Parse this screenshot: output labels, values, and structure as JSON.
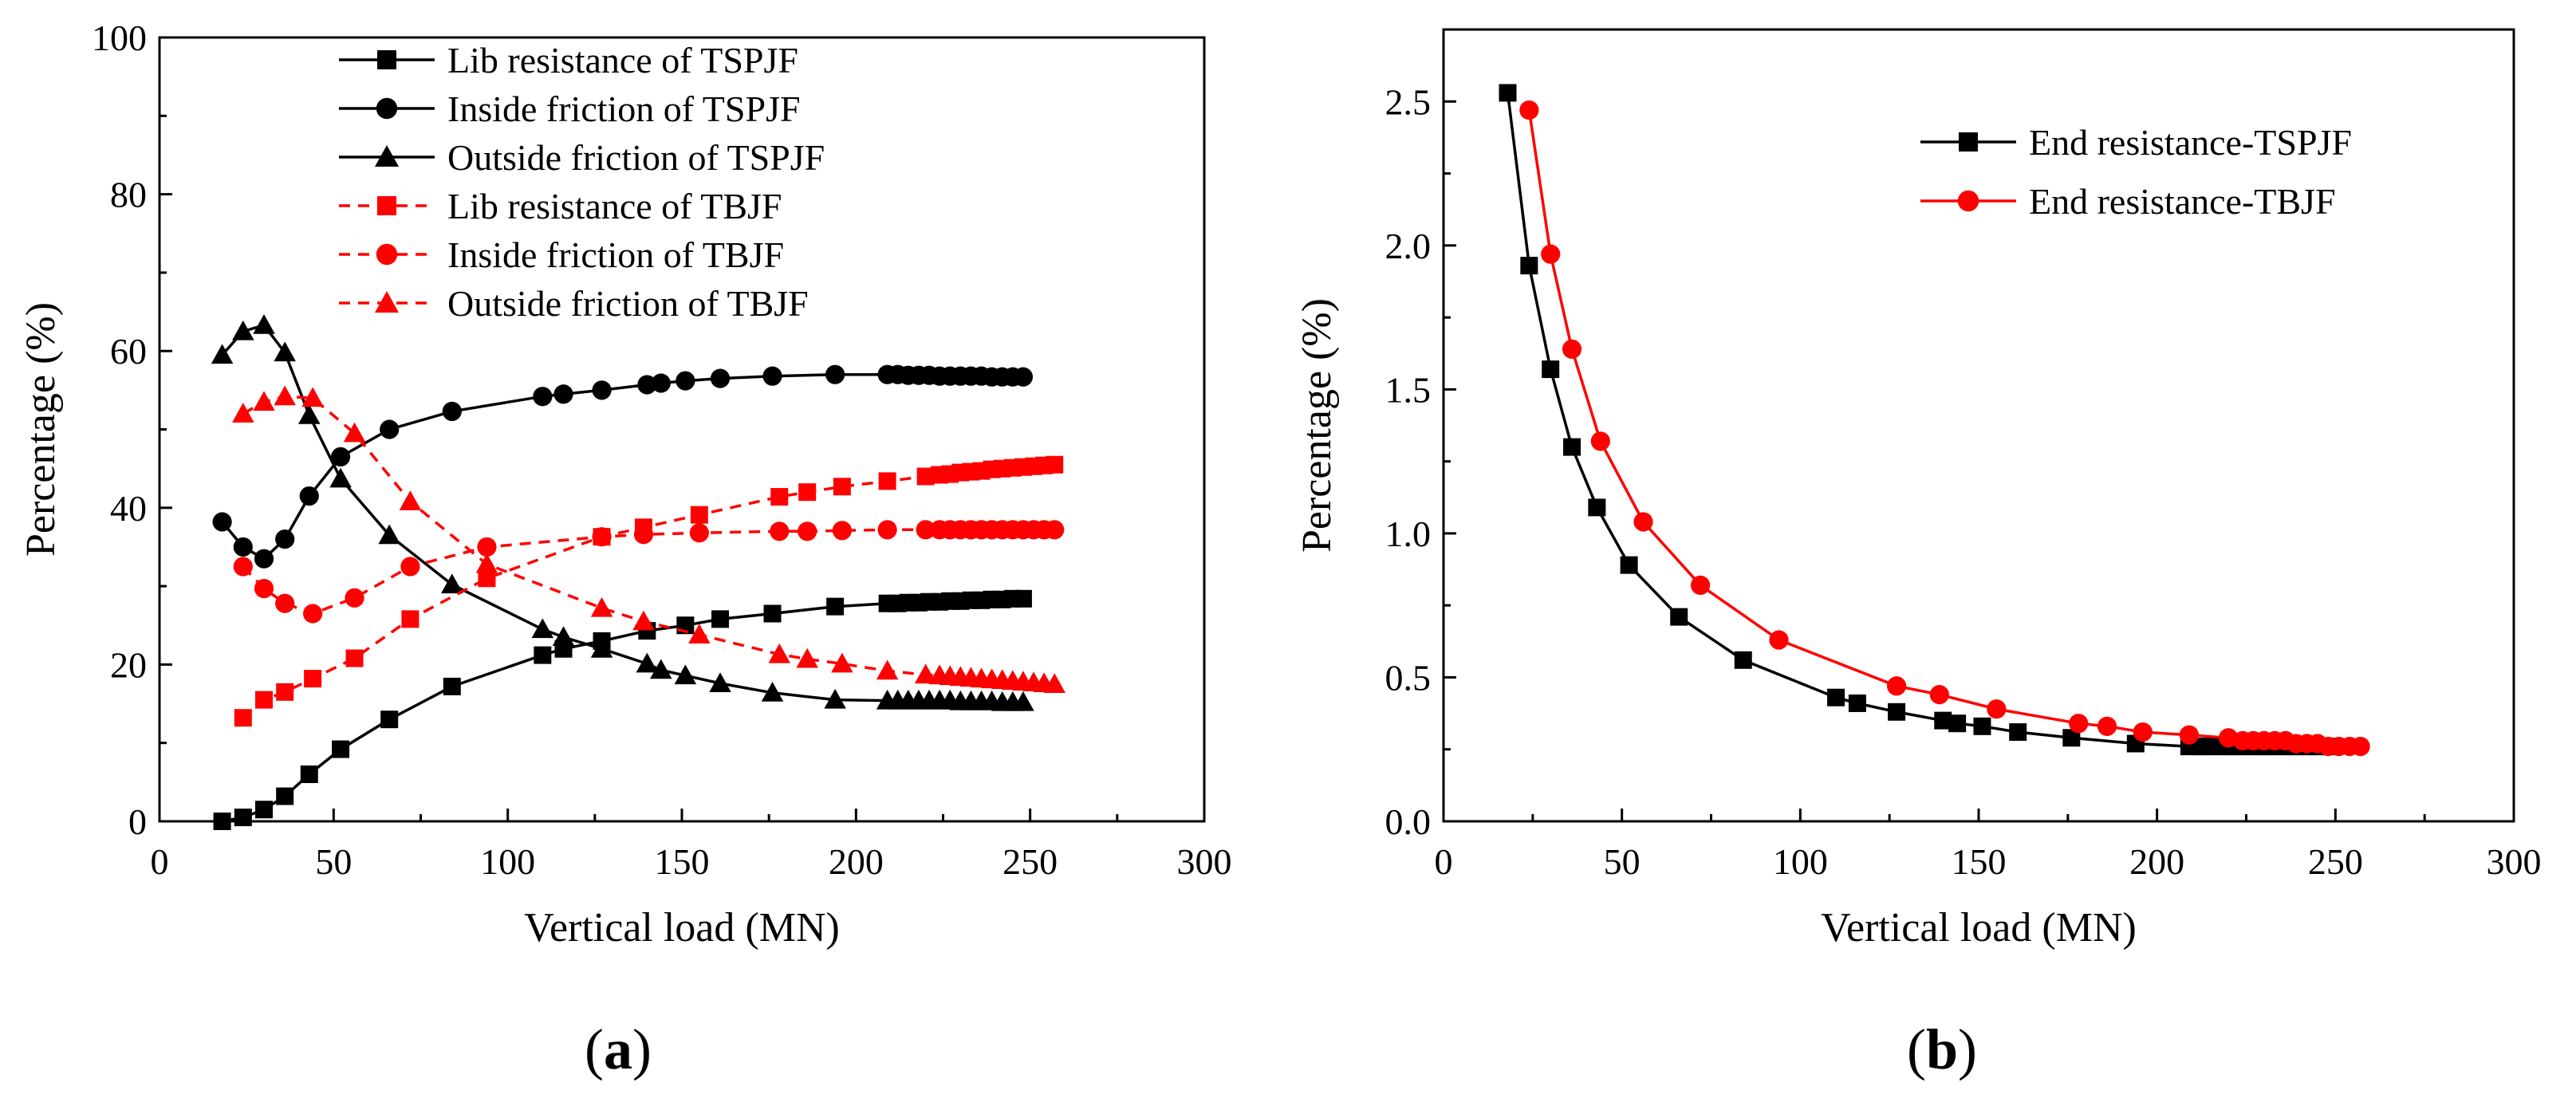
{
  "chart_data": [
    {
      "panel": "(a)",
      "type": "line",
      "title": "",
      "xlabel": "Vertical load (MN)",
      "ylabel": "Percentage (%)",
      "xlim": [
        0,
        300
      ],
      "ylim": [
        0,
        100
      ],
      "xticks": [
        0,
        50,
        100,
        150,
        200,
        250,
        300
      ],
      "yticks": [
        0,
        20,
        40,
        60,
        80,
        100
      ],
      "grid": false,
      "legend_position": "top-center",
      "series": [
        {
          "name": "Lib resistance of TSPJF",
          "color": "#000000",
          "dash": "solid",
          "marker": "square",
          "x": [
            18,
            24,
            30,
            36,
            43,
            52,
            66,
            84,
            110,
            116,
            127,
            140,
            151,
            161,
            176,
            194,
            209,
            212,
            215,
            218,
            221,
            224,
            227,
            230,
            233,
            236,
            239,
            242,
            245,
            248
          ],
          "y": [
            0,
            0.5,
            1.5,
            3.2,
            6,
            9.2,
            13,
            17.2,
            21.2,
            22,
            23,
            24.3,
            25,
            25.8,
            26.5,
            27.4,
            27.8,
            27.8,
            27.9,
            27.9,
            28,
            28,
            28.1,
            28.1,
            28.2,
            28.2,
            28.3,
            28.3,
            28.4,
            28.4
          ]
        },
        {
          "name": "Inside friction of TSPJF",
          "color": "#000000",
          "dash": "solid",
          "marker": "circle",
          "x": [
            18,
            24,
            30,
            36,
            43,
            52,
            66,
            84,
            110,
            116,
            127,
            140,
            144,
            151,
            161,
            176,
            194,
            209,
            212,
            215,
            218,
            221,
            224,
            227,
            230,
            233,
            236,
            239,
            242,
            245,
            248
          ],
          "y": [
            38.2,
            35,
            33.5,
            36,
            41.5,
            46.5,
            50,
            52.3,
            54.2,
            54.5,
            55,
            55.7,
            55.9,
            56.2,
            56.5,
            56.8,
            57,
            57,
            57,
            56.9,
            56.9,
            56.9,
            56.8,
            56.8,
            56.8,
            56.8,
            56.8,
            56.7,
            56.7,
            56.7,
            56.7
          ]
        },
        {
          "name": "Outside friction of TSPJF",
          "color": "#000000",
          "dash": "solid",
          "marker": "triangle",
          "x": [
            18,
            24,
            30,
            36,
            43,
            52,
            66,
            84,
            110,
            116,
            127,
            140,
            144,
            151,
            161,
            176,
            194,
            209,
            212,
            215,
            218,
            221,
            224,
            227,
            230,
            233,
            236,
            239,
            242,
            245,
            248
          ],
          "y": [
            59.5,
            62.5,
            63.3,
            59.8,
            51.8,
            43.7,
            36.5,
            30.2,
            24.5,
            23.5,
            22,
            20.1,
            19.3,
            18.6,
            17.6,
            16.4,
            15.5,
            15.4,
            15.4,
            15.4,
            15.4,
            15.4,
            15.4,
            15.4,
            15.3,
            15.3,
            15.3,
            15.3,
            15.2,
            15.2,
            15.2
          ]
        },
        {
          "name": "Lib resistance of TBJF",
          "color": "#ff0000",
          "dash": "dashed",
          "marker": "square",
          "x": [
            24,
            30,
            36,
            44,
            56,
            72,
            94,
            127,
            139,
            155,
            178,
            186,
            196,
            209,
            220,
            224,
            227,
            230,
            233,
            236,
            239,
            242,
            245,
            248,
            251,
            254,
            257
          ],
          "y": [
            13.2,
            15.5,
            16.5,
            18.2,
            20.8,
            25.8,
            31,
            36.3,
            37.5,
            39.1,
            41.4,
            42,
            42.7,
            43.4,
            44,
            44.2,
            44.3,
            44.5,
            44.6,
            44.7,
            44.9,
            45,
            45.1,
            45.2,
            45.3,
            45.4,
            45.5
          ]
        },
        {
          "name": "Inside friction of TBJF",
          "color": "#ff0000",
          "dash": "dashed",
          "marker": "circle",
          "x": [
            24,
            30,
            36,
            44,
            56,
            72,
            94,
            127,
            139,
            155,
            178,
            186,
            196,
            209,
            220,
            224,
            227,
            230,
            233,
            236,
            239,
            242,
            245,
            248,
            251,
            254,
            257
          ],
          "y": [
            32.5,
            29.7,
            27.8,
            26.5,
            28.5,
            32.5,
            35,
            36.3,
            36.6,
            36.8,
            37,
            37,
            37.1,
            37.2,
            37.2,
            37.2,
            37.2,
            37.2,
            37.2,
            37.2,
            37.2,
            37.2,
            37.2,
            37.2,
            37.2,
            37.2,
            37.2
          ]
        },
        {
          "name": "Outside friction of TBJF",
          "color": "#ff0000",
          "dash": "dashed",
          "marker": "triangle",
          "x": [
            24,
            30,
            36,
            44,
            56,
            72,
            94,
            127,
            139,
            155,
            178,
            186,
            196,
            209,
            220,
            224,
            227,
            230,
            233,
            236,
            239,
            242,
            245,
            248,
            251,
            254,
            257
          ],
          "y": [
            52,
            53.5,
            54.2,
            54,
            49.5,
            40.8,
            32.8,
            27.2,
            25.5,
            23.8,
            21.3,
            20.7,
            20.1,
            19.2,
            18.7,
            18.6,
            18.5,
            18.4,
            18.3,
            18.2,
            18.1,
            18,
            17.9,
            17.8,
            17.7,
            17.6,
            17.5
          ]
        }
      ]
    },
    {
      "panel": "(b)",
      "type": "line",
      "title": "",
      "xlabel": "Vertical load (MN)",
      "ylabel": "Percentage (%)",
      "xlim": [
        0,
        300
      ],
      "ylim": [
        0,
        2.75
      ],
      "xticks": [
        0,
        50,
        100,
        150,
        200,
        250,
        300
      ],
      "yticks": [
        0.0,
        0.5,
        1.0,
        1.5,
        2.0,
        2.5
      ],
      "ytick_labels": [
        "0.0",
        "0.5",
        "1.0",
        "1.5",
        "2.0",
        "2.5"
      ],
      "grid": false,
      "legend_position": "top-right",
      "series": [
        {
          "name": "End resistance-TSPJF",
          "color": "#000000",
          "dash": "solid",
          "marker": "square",
          "x": [
            18,
            24,
            30,
            36,
            43,
            52,
            66,
            84,
            110,
            116,
            127,
            140,
            144,
            151,
            161,
            176,
            194,
            209,
            212,
            215,
            218,
            221,
            224,
            227,
            230,
            233,
            236,
            239,
            242,
            245,
            248
          ],
          "y": [
            2.53,
            1.93,
            1.57,
            1.3,
            1.09,
            0.89,
            0.71,
            0.56,
            0.43,
            0.41,
            0.38,
            0.35,
            0.34,
            0.33,
            0.31,
            0.29,
            0.27,
            0.26,
            0.26,
            0.26,
            0.26,
            0.26,
            0.26,
            0.26,
            0.26,
            0.26,
            0.26,
            0.26,
            0.26,
            0.26,
            0.26
          ]
        },
        {
          "name": "End resistance-TBJF",
          "color": "#ff0000",
          "dash": "solid",
          "marker": "circle",
          "x": [
            24,
            30,
            36,
            44,
            56,
            72,
            94,
            127,
            139,
            155,
            178,
            186,
            196,
            209,
            220,
            224,
            227,
            230,
            233,
            236,
            239,
            242,
            245,
            248,
            251,
            254,
            257
          ],
          "y": [
            2.47,
            1.97,
            1.64,
            1.32,
            1.04,
            0.82,
            0.63,
            0.47,
            0.44,
            0.39,
            0.34,
            0.33,
            0.31,
            0.3,
            0.29,
            0.28,
            0.28,
            0.28,
            0.28,
            0.28,
            0.27,
            0.27,
            0.27,
            0.26,
            0.26,
            0.26,
            0.26
          ]
        }
      ]
    }
  ]
}
